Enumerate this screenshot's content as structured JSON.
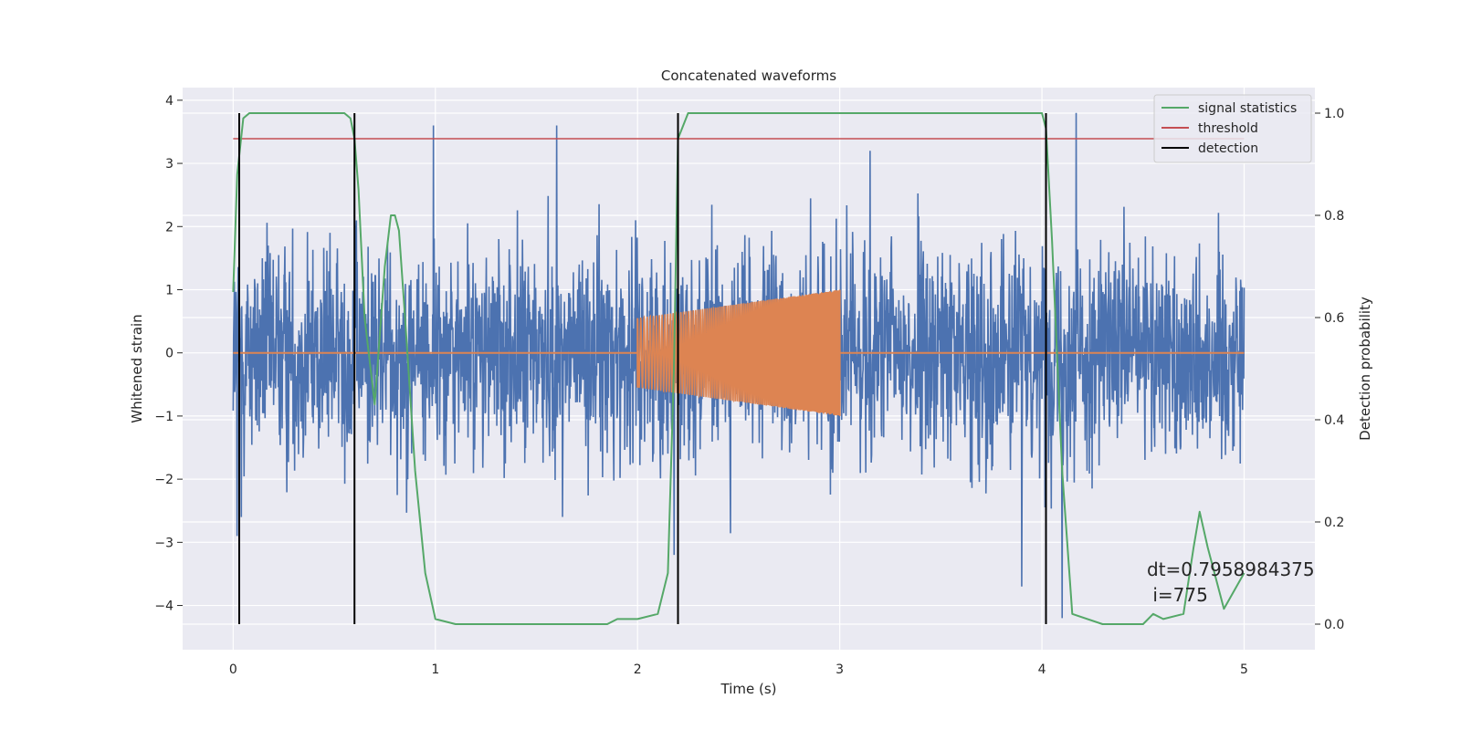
{
  "chart_data": {
    "type": "line",
    "title": "Concatenated waveforms",
    "xlabel": "Time (s)",
    "ylabel": "Whitened strain",
    "y2label": "Detection probability",
    "xlim": [
      -0.25,
      5.35
    ],
    "ylim": [
      -4.7,
      4.2
    ],
    "y2lim": [
      -0.05,
      1.05
    ],
    "x_ticks": [
      0,
      1,
      2,
      3,
      4,
      5
    ],
    "y_ticks": [
      -4,
      -3,
      -2,
      -1,
      0,
      1,
      2,
      3,
      4
    ],
    "y2_ticks": [
      0.0,
      0.2,
      0.4,
      0.6,
      0.8,
      1.0
    ],
    "x_tick_labels": [
      "0",
      "1",
      "2",
      "3",
      "4",
      "5"
    ],
    "y_tick_labels": [
      "−4",
      "−3",
      "−2",
      "−1",
      "0",
      "1",
      "2",
      "3",
      "4"
    ],
    "y2_tick_labels": [
      "0.0",
      "0.2",
      "0.4",
      "0.6",
      "0.8",
      "1.0"
    ],
    "grid": true,
    "legend_position": "top-right",
    "colors": {
      "background": "#eaeaf2",
      "grid": "#ffffff",
      "noise": "#4c72b0",
      "injection": "#dd8452",
      "signal_statistics": "#55a868",
      "threshold": "#c44e52",
      "detection": "#000000"
    },
    "series": [
      {
        "name": "signal statistics",
        "axis": "right",
        "x": [
          0.0,
          0.02,
          0.05,
          0.08,
          0.15,
          0.55,
          0.58,
          0.6,
          0.62,
          0.65,
          0.7,
          0.75,
          0.78,
          0.8,
          0.82,
          0.85,
          0.9,
          0.95,
          1.0,
          1.1,
          1.5,
          1.85,
          1.9,
          2.0,
          2.1,
          2.15,
          2.18,
          2.2,
          2.25,
          4.0,
          4.02,
          4.05,
          4.1,
          4.15,
          4.3,
          4.5,
          4.55,
          4.6,
          4.7,
          4.75,
          4.78,
          4.82,
          4.9,
          5.0
        ],
        "values": [
          0.65,
          0.88,
          0.99,
          1.0,
          1.0,
          1.0,
          0.99,
          0.95,
          0.85,
          0.6,
          0.43,
          0.7,
          0.8,
          0.8,
          0.77,
          0.6,
          0.3,
          0.1,
          0.01,
          0.0,
          0.0,
          0.0,
          0.01,
          0.01,
          0.02,
          0.1,
          0.5,
          0.95,
          1.0,
          1.0,
          0.97,
          0.75,
          0.3,
          0.02,
          0.0,
          0.0,
          0.02,
          0.01,
          0.02,
          0.15,
          0.22,
          0.15,
          0.03,
          0.1
        ]
      },
      {
        "name": "threshold",
        "axis": "right",
        "x": [
          0.0,
          5.0
        ],
        "values": [
          0.95,
          0.95
        ]
      },
      {
        "name": "detection",
        "axis": "right",
        "x_positions": [
          0.03,
          0.6,
          2.2,
          4.02
        ],
        "y_range": [
          0.0,
          1.0
        ]
      },
      {
        "name": "",
        "axis": "left",
        "kind": "whitened noise",
        "x_range": [
          0.0,
          5.0
        ],
        "std": 0.85,
        "extrema": [
          [
            0.02,
            -2.9
          ],
          [
            0.04,
            -2.6
          ],
          [
            0.6,
            2.8
          ],
          [
            0.99,
            3.6
          ],
          [
            1.6,
            3.6
          ],
          [
            2.18,
            -3.2
          ],
          [
            2.2,
            -3.7
          ],
          [
            3.15,
            3.2
          ],
          [
            3.9,
            -3.7
          ],
          [
            4.1,
            -4.2
          ],
          [
            4.17,
            3.8
          ]
        ]
      },
      {
        "name": "",
        "axis": "left",
        "kind": "injected chirp",
        "x_range": [
          2.0,
          3.0
        ],
        "amplitude_start": 0.55,
        "amplitude_end": 1.0,
        "freq_start_hz": 60,
        "freq_end_hz": 150,
        "flat_zero_range": [
          0.0,
          5.0
        ]
      }
    ],
    "legend": [
      "signal statistics",
      "threshold",
      "detection"
    ],
    "annotations": [
      "dt=0.7958984375",
      " i=775"
    ]
  }
}
